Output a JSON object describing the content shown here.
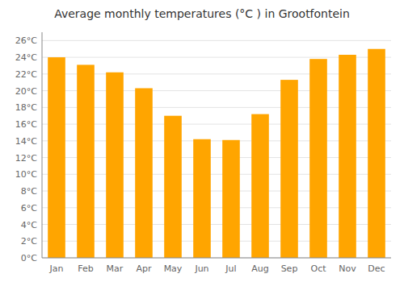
{
  "chart_data": {
    "type": "bar",
    "title": "Average monthly temperatures (°C ) in Grootfontein",
    "categories": [
      "Jan",
      "Feb",
      "Mar",
      "Apr",
      "May",
      "Jun",
      "Jul",
      "Aug",
      "Sep",
      "Oct",
      "Nov",
      "Dec"
    ],
    "values": [
      24.0,
      23.1,
      22.2,
      20.3,
      17.0,
      14.2,
      14.1,
      17.2,
      21.3,
      23.8,
      24.3,
      25.0
    ],
    "color": "#FFA500",
    "ylim": [
      0,
      27
    ],
    "yticks": [
      {
        "value": 0,
        "label": "0°C"
      },
      {
        "value": 2,
        "label": "2°C"
      },
      {
        "value": 4,
        "label": "4°C"
      },
      {
        "value": 6,
        "label": "6°C"
      },
      {
        "value": 8,
        "label": "8°C"
      },
      {
        "value": 10,
        "label": "10°C"
      },
      {
        "value": 12,
        "label": "12°C"
      },
      {
        "value": 14,
        "label": "14°C"
      },
      {
        "value": 16,
        "label": "16°C"
      },
      {
        "value": 18,
        "label": "18°C"
      },
      {
        "value": 20,
        "label": "20°C"
      },
      {
        "value": 22,
        "label": "22°C"
      },
      {
        "value": 24,
        "label": "24°C"
      },
      {
        "value": 26,
        "label": "26°C"
      }
    ],
    "grid": true
  }
}
